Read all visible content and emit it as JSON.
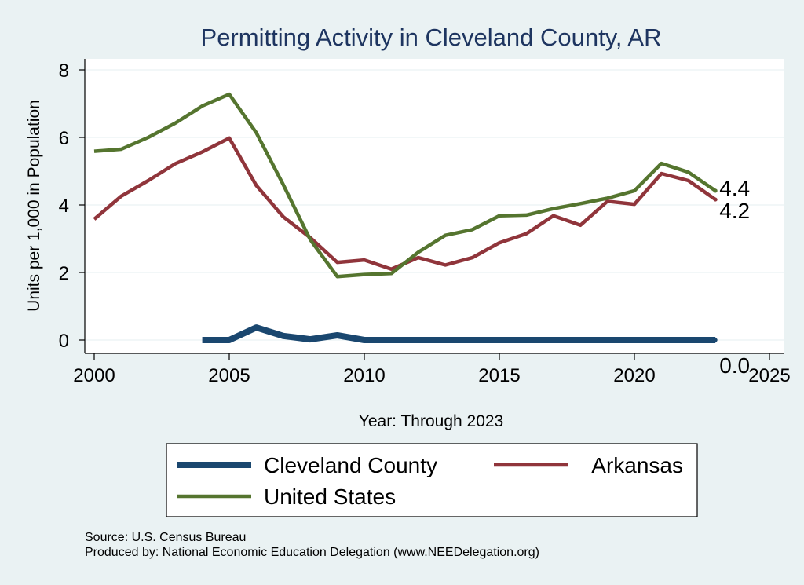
{
  "chart_data": {
    "type": "line",
    "title": "Permitting Activity in Cleveland County, AR",
    "xlabel": "Year: Through 2023",
    "ylabel": "Units per 1,000 in Population",
    "xlim": [
      2000,
      2025
    ],
    "ylim": [
      0,
      8
    ],
    "x_ticks": [
      "2000",
      "2005",
      "2010",
      "2015",
      "2020",
      "2025"
    ],
    "y_ticks": [
      "0",
      "2",
      "4",
      "6",
      "8"
    ],
    "grid": true,
    "legend_position": "bottom",
    "series": [
      {
        "name": "Cleveland County",
        "color": "#1a476f",
        "x": [
          2004,
          2005,
          2006,
          2007,
          2008,
          2009,
          2010,
          2011,
          2012,
          2013,
          2014,
          2015,
          2016,
          2017,
          2018,
          2019,
          2020,
          2021,
          2022,
          2023
        ],
        "values": [
          0.0,
          0.0,
          0.37,
          0.12,
          0.02,
          0.14,
          0.0,
          0.0,
          0.0,
          0.0,
          0.0,
          0.0,
          0.0,
          0.0,
          0.0,
          0.0,
          0.0,
          0.0,
          0.0,
          0.0
        ],
        "end_label": "0.0"
      },
      {
        "name": "Arkansas",
        "color": "#90353b",
        "x": [
          2000,
          2001,
          2002,
          2003,
          2004,
          2005,
          2006,
          2007,
          2008,
          2009,
          2010,
          2011,
          2012,
          2013,
          2014,
          2015,
          2016,
          2017,
          2018,
          2019,
          2020,
          2021,
          2022,
          2023
        ],
        "values": [
          3.58,
          4.26,
          4.72,
          5.22,
          5.57,
          5.98,
          4.58,
          3.65,
          3.03,
          2.3,
          2.37,
          2.1,
          2.44,
          2.22,
          2.44,
          2.88,
          3.15,
          3.68,
          3.4,
          4.11,
          4.02,
          4.93,
          4.72,
          4.16
        ],
        "end_label": "4.2"
      },
      {
        "name": "United States",
        "color": "#55752f",
        "x": [
          2000,
          2001,
          2002,
          2003,
          2004,
          2005,
          2006,
          2007,
          2008,
          2009,
          2010,
          2011,
          2012,
          2013,
          2014,
          2015,
          2016,
          2017,
          2018,
          2019,
          2020,
          2021,
          2022,
          2023
        ],
        "values": [
          5.59,
          5.65,
          6.0,
          6.42,
          6.93,
          7.28,
          6.14,
          4.6,
          2.97,
          1.88,
          1.94,
          1.97,
          2.6,
          3.1,
          3.27,
          3.68,
          3.7,
          3.89,
          4.04,
          4.2,
          4.42,
          5.23,
          4.97,
          4.42
        ],
        "end_label": "4.4"
      }
    ],
    "source": "Source: U.S. Census Bureau",
    "producer": "Produced by: National Economic Education Delegation (www.NEEDelegation.org)"
  }
}
